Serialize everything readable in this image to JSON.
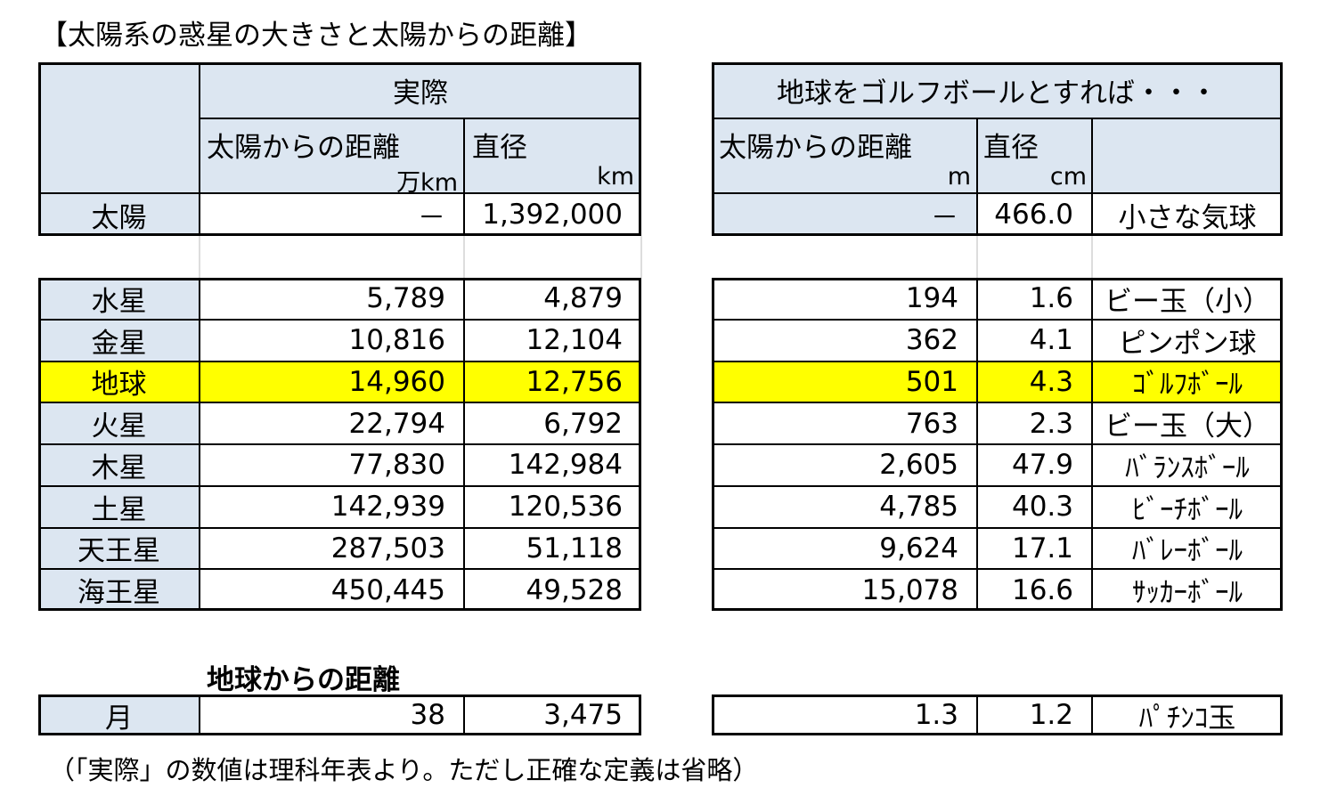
{
  "title": "【太陽系の惑星の大きさと太陽からの距離】",
  "actual": {
    "header": "実際",
    "col1": "太陽からの距離",
    "col1_unit": "万km",
    "col2": "直径",
    "col2_unit": "km"
  },
  "golf": {
    "header": "地球をゴルフボールとすれば・・・",
    "col1": "太陽からの距離",
    "col1_unit": "m",
    "col2": "直径",
    "col2_unit": "cm"
  },
  "sun": {
    "name": "太陽",
    "actual": [
      "－",
      "1,392,000"
    ],
    "golf": [
      "－",
      "466.0",
      "小さな気球"
    ]
  },
  "planets": [
    {
      "name": "水星",
      "actual": [
        "5,789",
        "4,879"
      ],
      "golf": [
        "194",
        "1.6",
        "ビー玉（小）"
      ]
    },
    {
      "name": "金星",
      "actual": [
        "10,816",
        "12,104"
      ],
      "golf": [
        "362",
        "4.1",
        "ピンポン球"
      ]
    },
    {
      "name": "地球",
      "actual": [
        "14,960",
        "12,756"
      ],
      "golf": [
        "501",
        "4.3",
        "ｺﾞﾙﾌﾎﾞｰﾙ"
      ],
      "highlight": true
    },
    {
      "name": "火星",
      "actual": [
        "22,794",
        "6,792"
      ],
      "golf": [
        "763",
        "2.3",
        "ビー玉（大）"
      ]
    },
    {
      "name": "木星",
      "actual": [
        "77,830",
        "142,984"
      ],
      "golf": [
        "2,605",
        "47.9",
        "ﾊﾞﾗﾝｽﾎﾞｰﾙ"
      ]
    },
    {
      "name": "土星",
      "actual": [
        "142,939",
        "120,536"
      ],
      "golf": [
        "4,785",
        "40.3",
        "ﾋﾞｰﾁﾎﾞｰﾙ"
      ]
    },
    {
      "name": "天王星",
      "actual": [
        "287,503",
        "51,118"
      ],
      "golf": [
        "9,624",
        "17.1",
        "ﾊﾞﾚｰﾎﾞｰﾙ"
      ]
    },
    {
      "name": "海王星",
      "actual": [
        "450,445",
        "49,528"
      ],
      "golf": [
        "15,078",
        "16.6",
        "ｻｯｶｰﾎﾞｰﾙ"
      ]
    }
  ],
  "moon": {
    "caption": "地球からの距離",
    "name": "月",
    "actual": [
      "38",
      "3,475"
    ],
    "golf": [
      "1.3",
      "1.2",
      "ﾊﾟﾁﾝｺ玉"
    ]
  },
  "footnote": "（「実際」の数値は理科年表より。ただし正確な定義は省略）"
}
